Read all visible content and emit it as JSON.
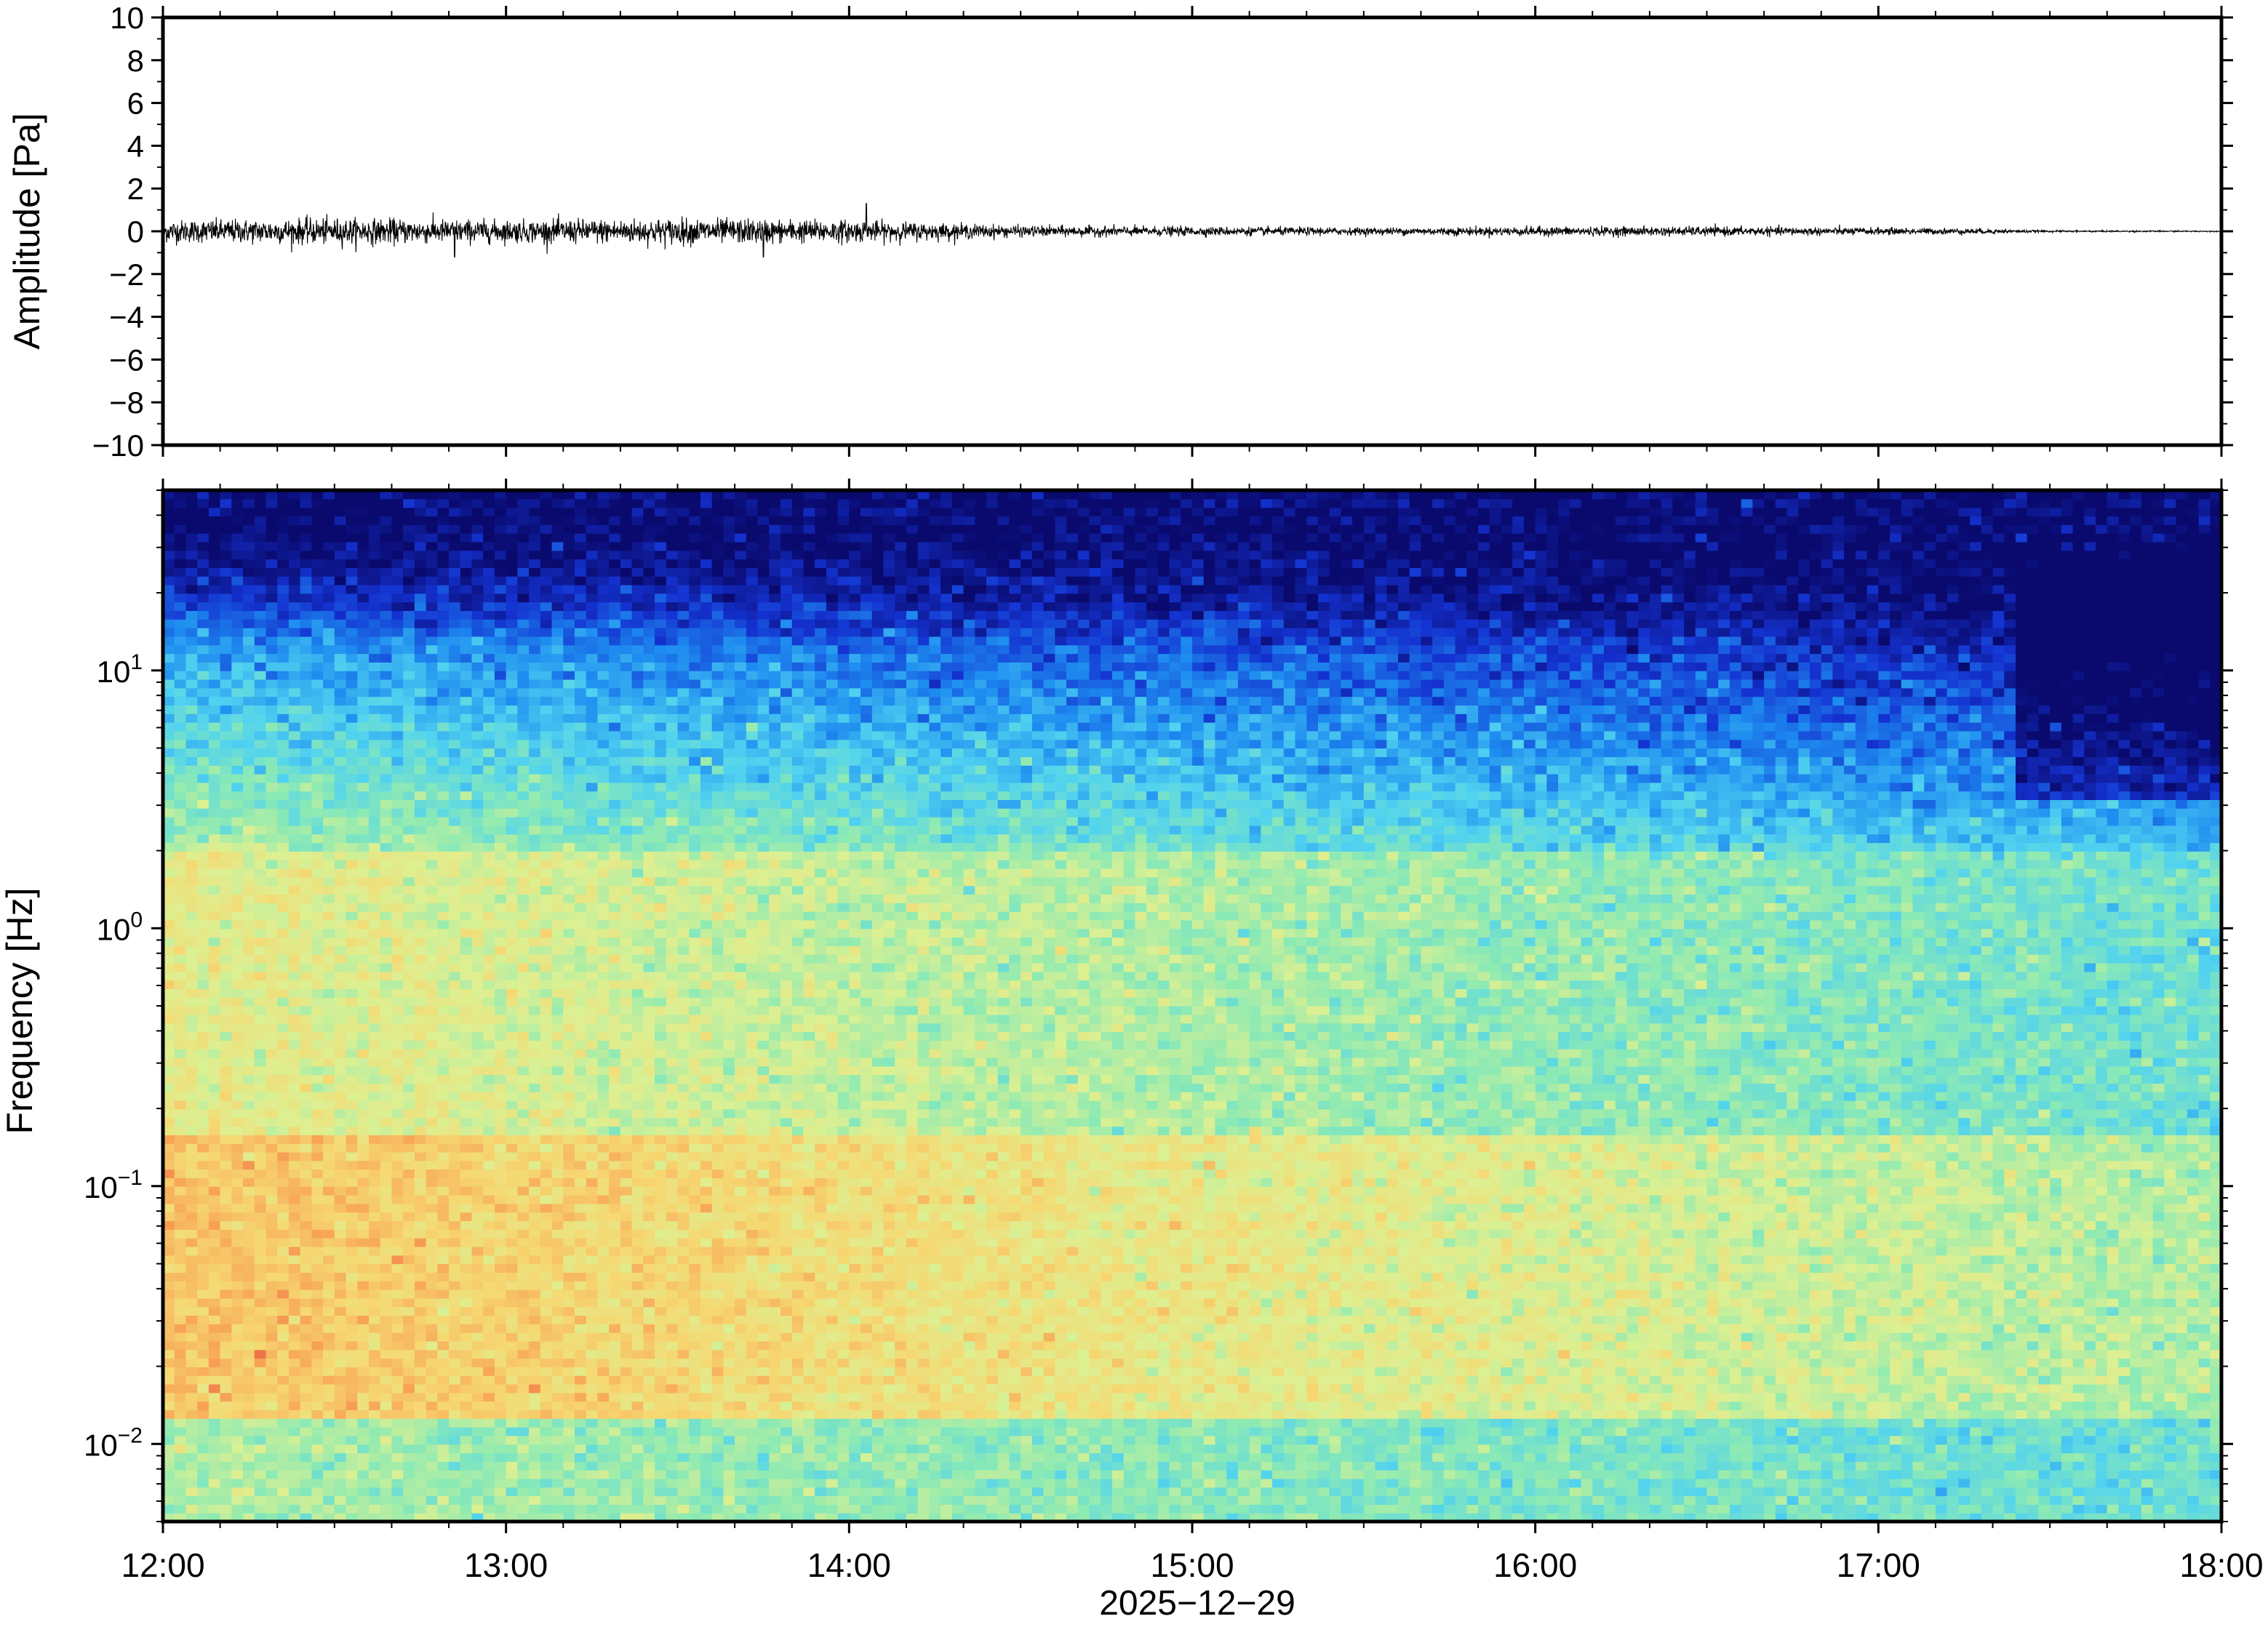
{
  "chart_data": [
    {
      "type": "line",
      "ylabel": "Amplitude [Pa]",
      "ylim": [
        -10,
        10
      ],
      "yticks": [
        10,
        8,
        6,
        4,
        2,
        0,
        -2,
        -4,
        -6,
        -8,
        -10
      ],
      "ytick_labels": [
        "10",
        "8",
        "6",
        "4",
        "2",
        "0",
        "−2",
        "−4",
        "−6",
        "−8",
        "−10"
      ],
      "x_range": [
        "12:00",
        "18:00"
      ],
      "grid": false,
      "series": [
        {
          "color": "#000000",
          "envelope": {
            "hours": [
              12.0,
              12.5,
              13.0,
              13.5,
              14.0,
              14.5,
              15.0,
              15.5,
              16.0,
              16.5,
              17.0,
              17.3,
              17.5,
              18.0
            ],
            "approx_peak_amplitude_pa": [
              0.6,
              0.7,
              0.6,
              0.7,
              0.6,
              0.3,
              0.25,
              0.2,
              0.25,
              0.25,
              0.2,
              0.15,
              0.05,
              0.03
            ]
          },
          "notable_peaks": [
            {
              "hour": 14.05,
              "amplitude": 1.3
            },
            {
              "hour": 13.75,
              "amplitude": -1.2
            },
            {
              "hour": 12.85,
              "amplitude": -1.2
            }
          ]
        }
      ]
    },
    {
      "type": "heatmap",
      "ylabel": "Frequency [Hz]",
      "xlabel": "2025−12−29",
      "y_scale": "log",
      "ylim_hz": [
        0.005,
        50
      ],
      "yticks": [
        {
          "base": "10",
          "exp": "1"
        },
        {
          "base": "10",
          "exp": "0"
        },
        {
          "base": "10",
          "exp": "−1"
        },
        {
          "base": "10",
          "exp": "−2"
        }
      ],
      "xticks": [
        "12:00",
        "13:00",
        "14:00",
        "15:00",
        "16:00",
        "17:00",
        "18:00"
      ],
      "colormap": [
        "#0a0a6e",
        "#1432d0",
        "#1e8cf0",
        "#50d2f0",
        "#8ceab4",
        "#dcf092",
        "#f6d872",
        "#f8a456",
        "#eb6a44"
      ],
      "grid": false,
      "description_levels": "high power at 0.02–0.2 Hz before 15:00, decreasing toward 18:00"
    }
  ]
}
